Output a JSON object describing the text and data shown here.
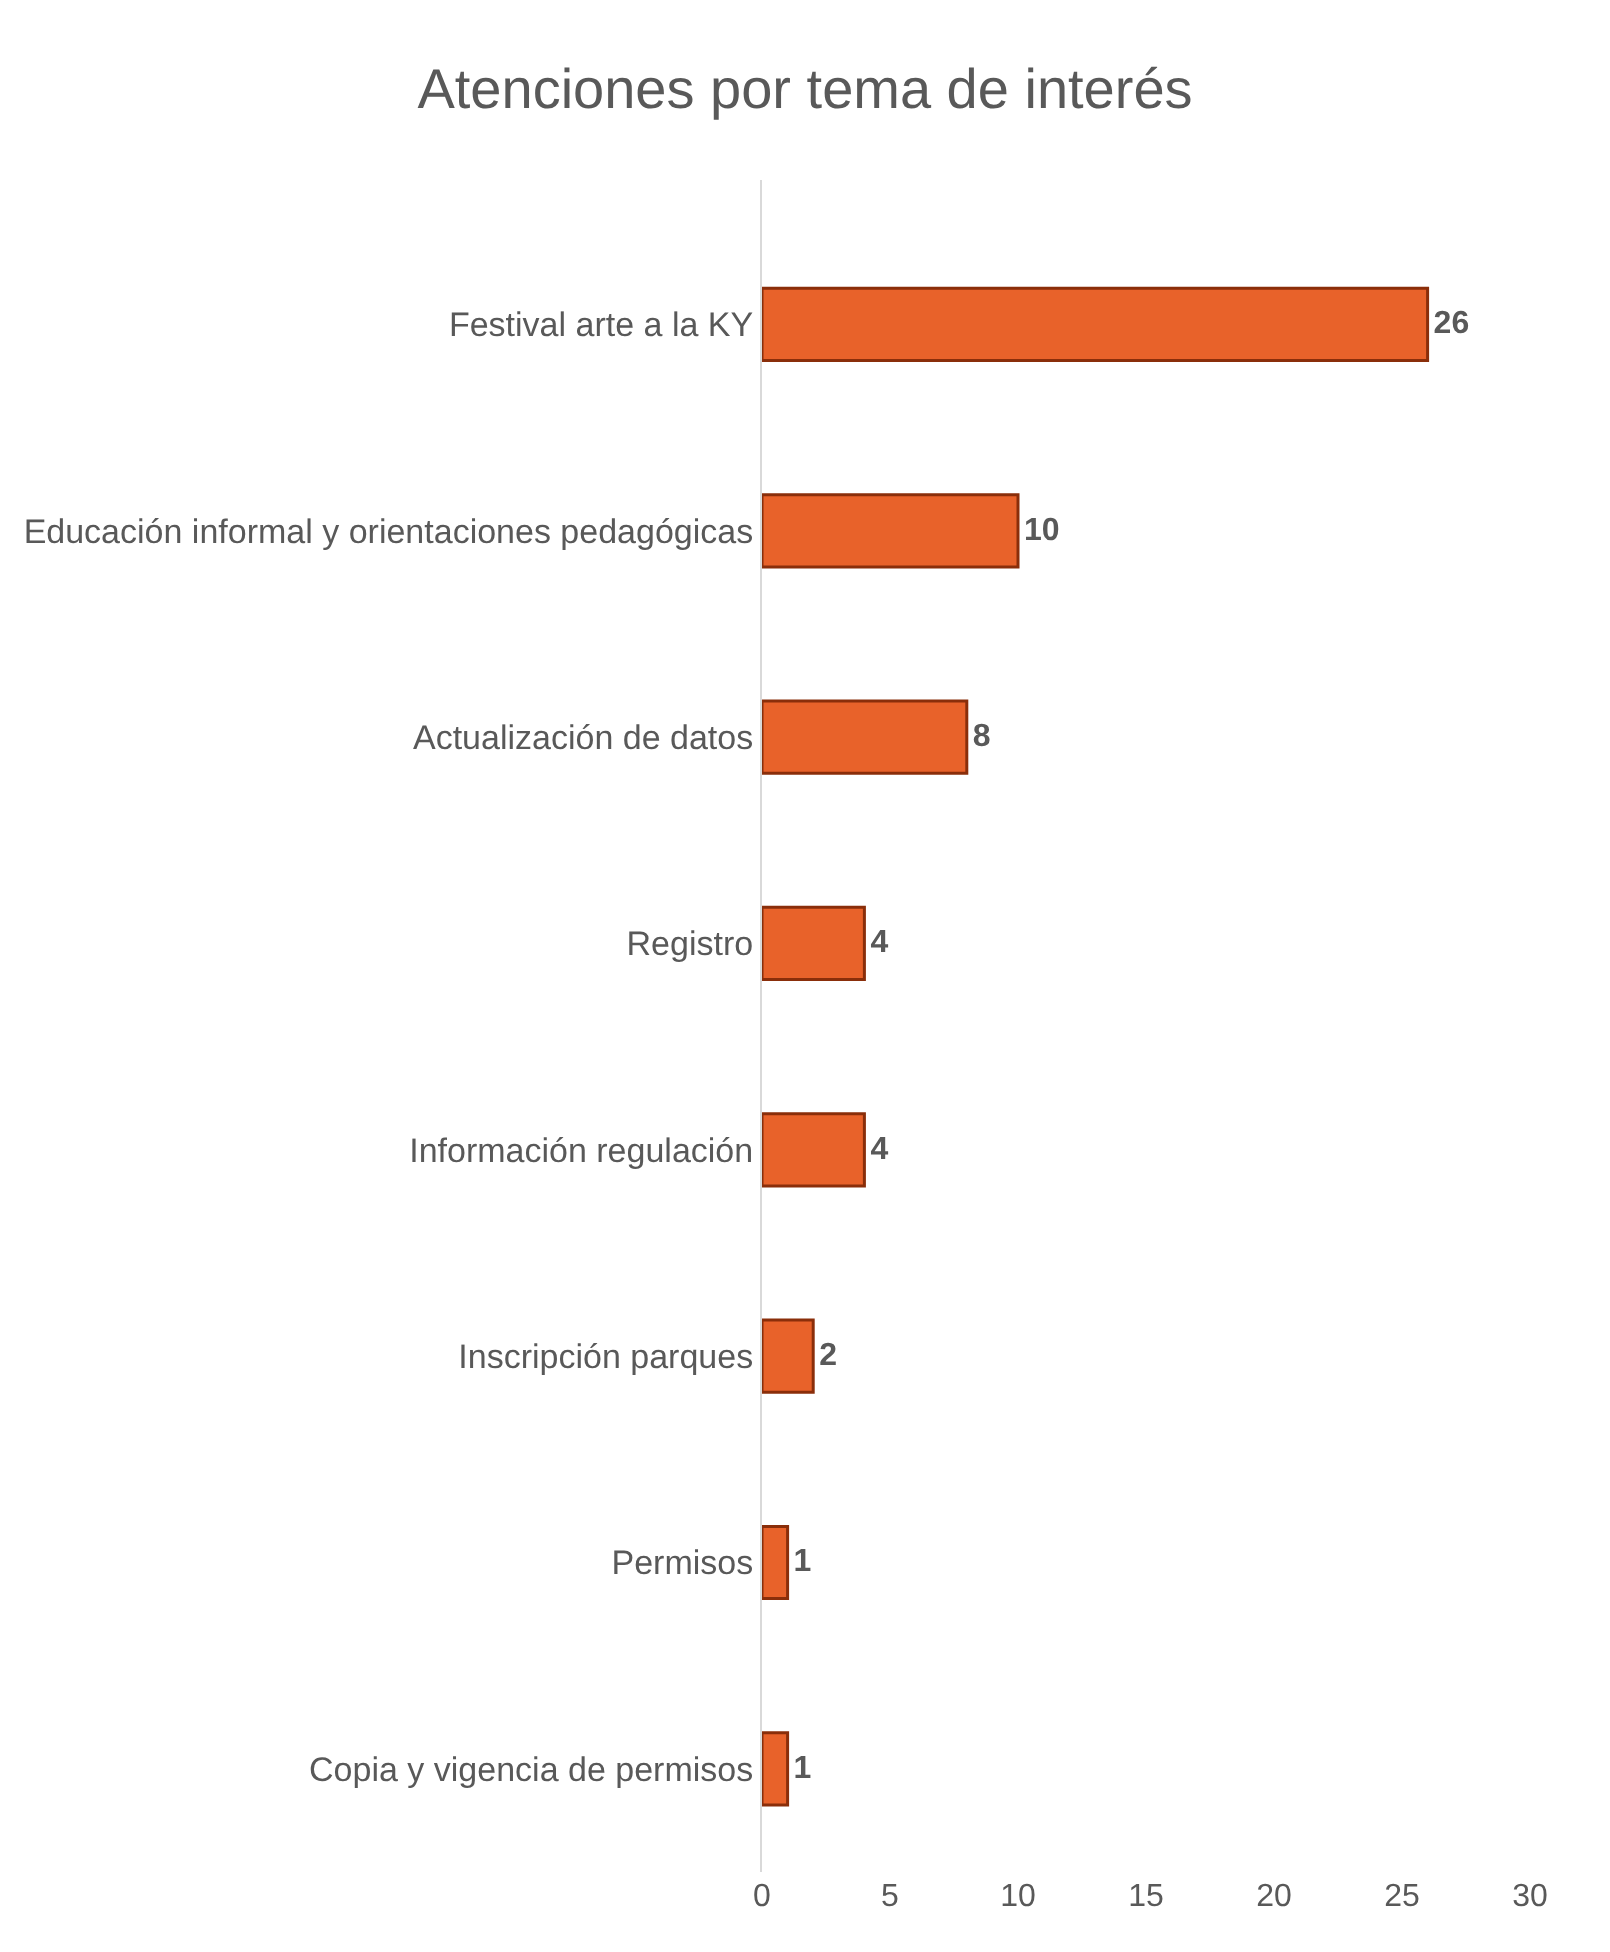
{
  "chart_data": {
    "type": "bar",
    "orientation": "horizontal",
    "title": "Atenciones por tema de interés",
    "categories": [
      "Festival arte a la KY",
      "Educación informal y orientaciones pedagógicas",
      "Actualización de datos",
      "Registro",
      "Información regulación",
      "Inscripción parques",
      "Permisos",
      "Copia y vigencia de permisos"
    ],
    "values": [
      26,
      10,
      8,
      4,
      4,
      2,
      1,
      1
    ],
    "color": "#e8622a",
    "xlim": [
      0,
      30
    ],
    "xticks": [
      0,
      5,
      10,
      15,
      20,
      25,
      30
    ],
    "data_labels": true
  }
}
